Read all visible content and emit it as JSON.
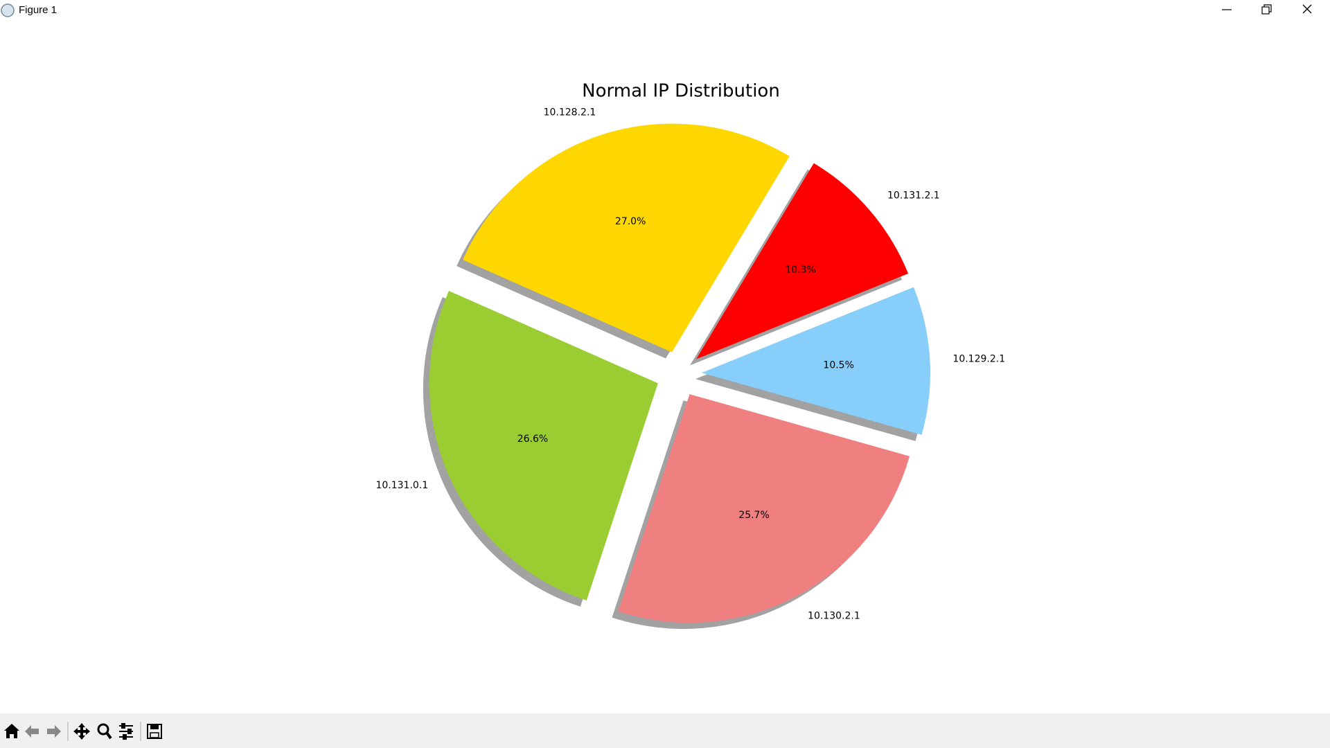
{
  "window": {
    "title": "Figure 1"
  },
  "chart_data": {
    "type": "pie",
    "title": "Normal IP Distribution",
    "categories": [
      "10.131.2.1",
      "10.128.2.1",
      "10.131.0.1",
      "10.130.2.1",
      "10.129.2.1"
    ],
    "values": [
      10.3,
      27.0,
      26.6,
      25.7,
      10.5
    ],
    "value_labels": [
      "10.3%",
      "27.0%",
      "26.6%",
      "25.7%",
      "10.5%"
    ],
    "colors": [
      "#ff0000",
      "#ffd700",
      "#9acd32",
      "#f08080",
      "#87cefa"
    ],
    "shadow": true,
    "explode": true
  }
}
